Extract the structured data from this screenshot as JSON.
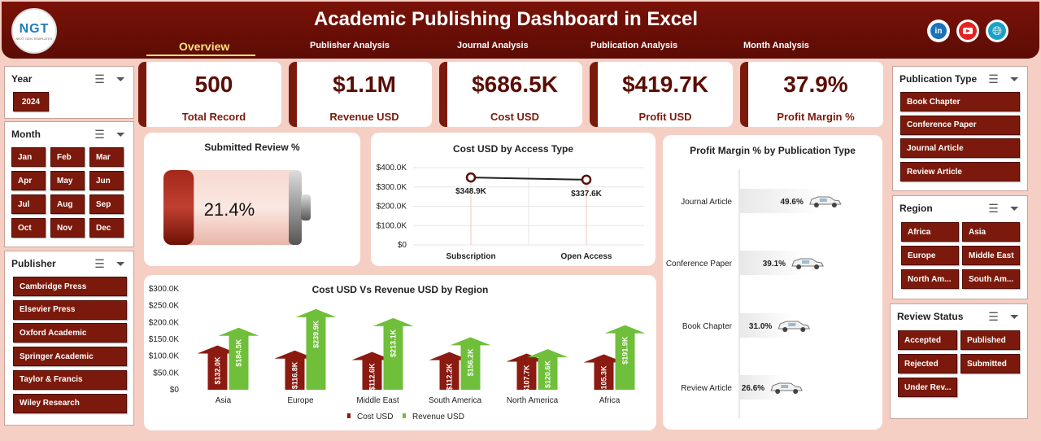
{
  "header": {
    "logo_text": "NGT",
    "logo_sub": "NEXT GEN TEMPLATES",
    "title": "Academic Publishing Dashboard in Excel",
    "tabs": [
      "Overview",
      "Publisher Analysis",
      "Journal Analysis",
      "Publication  Analysis",
      "Month Analysis"
    ],
    "active_tab": "Overview",
    "social": [
      "linkedin-icon",
      "youtube-icon",
      "globe-icon"
    ]
  },
  "filters": {
    "year": {
      "title": "Year",
      "items": [
        "2024"
      ]
    },
    "month": {
      "title": "Month",
      "items": [
        "Jan",
        "Feb",
        "Mar",
        "Apr",
        "May",
        "Jun",
        "Jul",
        "Aug",
        "Sep",
        "Oct",
        "Nov",
        "Dec"
      ]
    },
    "publisher": {
      "title": "Publisher",
      "items": [
        "Cambridge Press",
        "Elsevier Press",
        "Oxford Academic",
        "Springer Academic",
        "Taylor & Francis",
        "Wiley Research"
      ]
    },
    "publication_type": {
      "title": "Publication Type",
      "items": [
        "Book Chapter",
        "Conference Paper",
        "Journal Article",
        "Review Article"
      ]
    },
    "region": {
      "title": "Region",
      "items": [
        "Africa",
        "Asia",
        "Europe",
        "Middle East",
        "North Am...",
        "South Am..."
      ]
    },
    "review_status": {
      "title": "Review Status",
      "items": [
        "Accepted",
        "Published",
        "Rejected",
        "Submitted",
        "Under Rev..."
      ]
    }
  },
  "kpis": [
    {
      "value": "500",
      "label": "Total Record"
    },
    {
      "value": "$1.1M",
      "label": "Revenue USD"
    },
    {
      "value": "$686.5K",
      "label": "Cost USD"
    },
    {
      "value": "$419.7K",
      "label": "Profit USD"
    },
    {
      "value": "37.9%",
      "label": "Profit Margin %"
    }
  ],
  "colors": {
    "brand": "#7b1a0c",
    "header": "#6a0f06",
    "background": "#f6cfc4",
    "cost": "#8b1a10",
    "revenue": "#6fbf3a"
  },
  "chart_data": [
    {
      "type": "gauge",
      "title": "Submitted Review %",
      "value": 21.4,
      "label": "21.4%"
    },
    {
      "type": "line",
      "title": "Cost USD by Access Type",
      "categories": [
        "Subscription",
        "Open Access"
      ],
      "series": [
        {
          "values": [
            348.9,
            337.6
          ]
        }
      ],
      "data_labels": [
        "$348.9K",
        "$337.6K"
      ],
      "ylim": [
        0,
        400
      ],
      "yticks": [
        "$0",
        "$100.0K",
        "$200.0K",
        "$300.0K",
        "$400.0K"
      ],
      "grid": true
    },
    {
      "type": "bar",
      "title": "Cost USD Vs Revenue USD by Region",
      "categories": [
        "Asia",
        "Europe",
        "Middle East",
        "South America",
        "North America",
        "Africa"
      ],
      "series": [
        {
          "name": "Cost USD",
          "values": [
            132.0,
            116.8,
            112.6,
            112.2,
            107.7,
            105.3
          ],
          "labels": [
            "$132.0K",
            "$116.8K",
            "$112.6K",
            "$112.2K",
            "$107.7K",
            "$105.3K"
          ]
        },
        {
          "name": "Revenue USD",
          "values": [
            184.5,
            239.9,
            213.1,
            156.2,
            120.6,
            191.9
          ],
          "labels": [
            "$184.5K",
            "$239.9K",
            "$213.1K",
            "$156.2K",
            "$120.6K",
            "$191.9K"
          ]
        }
      ],
      "ylim": [
        0,
        300
      ],
      "yticks": [
        "$0",
        "$50.0K",
        "$100.0K",
        "$150.0K",
        "$200.0K",
        "$250.0K",
        "$300.0K"
      ],
      "legend": "bottom"
    },
    {
      "type": "bar",
      "orientation": "horizontal",
      "title": "Profit Margin % by Publication Type",
      "categories": [
        "Journal Article",
        "Conference Paper",
        "Book Chapter",
        "Review Article"
      ],
      "values": [
        49.6,
        39.1,
        31.0,
        26.6
      ],
      "labels": [
        "49.6%",
        "39.1%",
        "31.0%",
        "26.6%"
      ],
      "xlim": [
        0,
        100
      ]
    }
  ]
}
